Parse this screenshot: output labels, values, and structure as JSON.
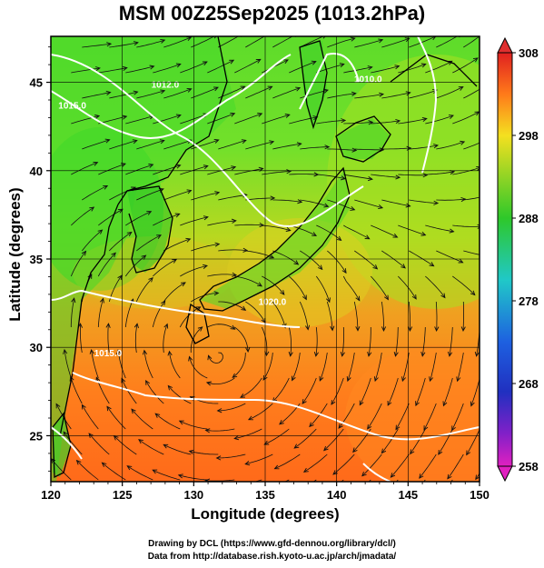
{
  "map": {
    "title": "MSM 00Z25Sep2025 (1013.2hPa)",
    "xlabel": "Longitude (degrees)",
    "ylabel": "Latitude  (degrees)",
    "lon_range": [
      120,
      150
    ],
    "lat_range": [
      22.4,
      47.6
    ],
    "lon_ticks": [
      "120",
      "125",
      "130",
      "135",
      "140",
      "145",
      "150"
    ],
    "lat_ticks": [
      "25",
      "30",
      "35",
      "40",
      "45"
    ],
    "colorbar": {
      "ticks": [
        "308",
        "298",
        "288",
        "278",
        "268",
        "258"
      ],
      "range": [
        258,
        308
      ]
    },
    "isobars": [
      {
        "label": "1015.0",
        "lon": 121.5,
        "lat": 43.5
      },
      {
        "label": "1012.0",
        "lon": 128.0,
        "lat": 44.7
      },
      {
        "label": "1020.0",
        "lon": 135.5,
        "lat": 32.4
      },
      {
        "label": "1015.0",
        "lon": 124.0,
        "lat": 29.5
      },
      {
        "label": "1010.0",
        "lon": 142.2,
        "lat": 45.0
      }
    ],
    "colors": {
      "warm": "#ff7a1a",
      "mid": "#f0c020",
      "cool": "#7ce020",
      "land_green": "#3ad12a"
    }
  },
  "credits": {
    "line1": "Drawing by DCL (https://www.gfd-dennou.org/library/dcl/)",
    "line2": "Data from http://database.rish.kyoto-u.ac.jp/arch/jmadata/"
  }
}
